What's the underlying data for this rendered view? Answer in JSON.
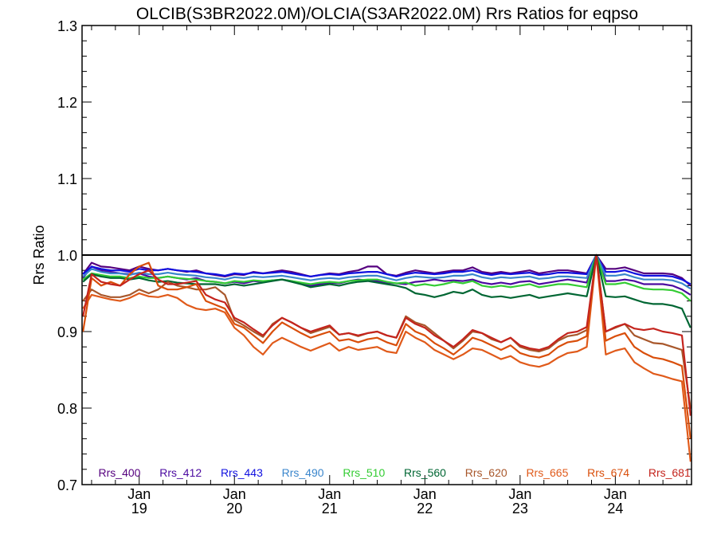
{
  "chart_data": {
    "type": "line",
    "title": "OLCIB(S3BR2022.0M)/OLCIA(S3AR2022.0M)  Rrs Ratios for eqpso",
    "xlabel": "",
    "ylabel": "Rrs Ratio",
    "ylim": [
      0.7,
      1.3
    ],
    "xlim": [
      18.4,
      24.8
    ],
    "yticks": [
      0.7,
      0.8,
      0.9,
      1.0,
      1.1,
      1.2,
      1.3
    ],
    "ytick_labels": [
      "0.7",
      "0.8",
      "0.9",
      "1.0",
      "1.1",
      "1.2",
      "1.3"
    ],
    "xticks": [
      {
        "x": 19,
        "month": "Jan",
        "day": "19"
      },
      {
        "x": 20,
        "month": "Jan",
        "day": "20"
      },
      {
        "x": 21,
        "month": "Jan",
        "day": "21"
      },
      {
        "x": 22,
        "month": "Jan",
        "day": "22"
      },
      {
        "x": 23,
        "month": "Jan",
        "day": "23"
      },
      {
        "x": 24,
        "month": "Jan",
        "day": "24"
      }
    ],
    "reference_line": 1.0,
    "legend_placement": "bottom",
    "x": [
      18.41,
      18.5,
      18.6,
      18.7,
      18.8,
      18.9,
      19.0,
      19.1,
      19.2,
      19.3,
      19.4,
      19.5,
      19.6,
      19.7,
      19.8,
      19.9,
      20.0,
      20.1,
      20.2,
      20.3,
      20.4,
      20.5,
      20.6,
      20.7,
      20.8,
      20.9,
      21.0,
      21.1,
      21.2,
      21.3,
      21.4,
      21.5,
      21.6,
      21.7,
      21.8,
      21.9,
      22.0,
      22.1,
      22.2,
      22.3,
      22.4,
      22.5,
      22.6,
      22.7,
      22.8,
      22.9,
      23.0,
      23.1,
      23.2,
      23.3,
      23.4,
      23.5,
      23.6,
      23.7,
      23.8,
      23.9,
      24.0,
      24.1,
      24.2,
      24.3,
      24.4,
      24.5,
      24.6,
      24.7,
      24.79
    ],
    "series": [
      {
        "name": "Rrs_400",
        "color": "#55007f",
        "values": [
          0.975,
          0.99,
          0.985,
          0.984,
          0.982,
          0.98,
          0.985,
          0.982,
          0.98,
          0.982,
          0.98,
          0.978,
          0.98,
          0.976,
          0.974,
          0.972,
          0.975,
          0.974,
          0.978,
          0.976,
          0.978,
          0.98,
          0.978,
          0.975,
          0.972,
          0.974,
          0.976,
          0.975,
          0.978,
          0.98,
          0.985,
          0.985,
          0.975,
          0.973,
          0.977,
          0.98,
          0.978,
          0.976,
          0.978,
          0.98,
          0.98,
          0.984,
          0.978,
          0.976,
          0.978,
          0.976,
          0.978,
          0.98,
          0.976,
          0.978,
          0.98,
          0.98,
          0.978,
          0.976,
          1.0,
          0.982,
          0.982,
          0.984,
          0.98,
          0.976,
          0.976,
          0.976,
          0.975,
          0.97,
          0.96
        ]
      },
      {
        "name": "Rrs_412",
        "color": "#4b0aa0",
        "values": [
          0.97,
          0.985,
          0.98,
          0.978,
          0.976,
          0.975,
          0.976,
          0.972,
          0.97,
          0.972,
          0.97,
          0.968,
          0.97,
          0.966,
          0.965,
          0.963,
          0.965,
          0.963,
          0.966,
          0.965,
          0.967,
          0.968,
          0.966,
          0.963,
          0.96,
          0.962,
          0.964,
          0.963,
          0.966,
          0.968,
          0.967,
          0.966,
          0.964,
          0.963,
          0.962,
          0.965,
          0.966,
          0.968,
          0.966,
          0.967,
          0.966,
          0.968,
          0.964,
          0.962,
          0.964,
          0.962,
          0.965,
          0.966,
          0.962,
          0.964,
          0.966,
          0.968,
          0.966,
          0.964,
          1.0,
          0.966,
          0.966,
          0.968,
          0.966,
          0.962,
          0.962,
          0.962,
          0.96,
          0.955,
          0.948
        ]
      },
      {
        "name": "Rrs_443",
        "color": "#1010e0",
        "values": [
          0.975,
          0.985,
          0.982,
          0.98,
          0.98,
          0.978,
          0.982,
          0.98,
          0.98,
          0.982,
          0.98,
          0.979,
          0.978,
          0.976,
          0.975,
          0.973,
          0.976,
          0.975,
          0.977,
          0.976,
          0.977,
          0.978,
          0.976,
          0.974,
          0.972,
          0.974,
          0.975,
          0.974,
          0.976,
          0.977,
          0.978,
          0.978,
          0.975,
          0.972,
          0.975,
          0.977,
          0.976,
          0.975,
          0.976,
          0.978,
          0.978,
          0.98,
          0.976,
          0.974,
          0.976,
          0.975,
          0.976,
          0.977,
          0.974,
          0.975,
          0.977,
          0.977,
          0.976,
          0.975,
          1.0,
          0.978,
          0.978,
          0.98,
          0.976,
          0.973,
          0.973,
          0.973,
          0.972,
          0.968,
          0.962
        ]
      },
      {
        "name": "Rrs_490",
        "color": "#3a86cc",
        "values": [
          0.972,
          0.982,
          0.978,
          0.976,
          0.976,
          0.974,
          0.977,
          0.975,
          0.975,
          0.977,
          0.975,
          0.974,
          0.973,
          0.971,
          0.97,
          0.968,
          0.971,
          0.97,
          0.972,
          0.971,
          0.972,
          0.973,
          0.971,
          0.969,
          0.967,
          0.969,
          0.97,
          0.969,
          0.971,
          0.972,
          0.973,
          0.973,
          0.97,
          0.967,
          0.97,
          0.972,
          0.971,
          0.97,
          0.971,
          0.973,
          0.973,
          0.975,
          0.971,
          0.969,
          0.971,
          0.97,
          0.971,
          0.972,
          0.969,
          0.97,
          0.972,
          0.972,
          0.971,
          0.97,
          1.0,
          0.973,
          0.973,
          0.975,
          0.971,
          0.968,
          0.968,
          0.968,
          0.967,
          0.963,
          0.956
        ]
      },
      {
        "name": "Rrs_510",
        "color": "#33cc33",
        "values": [
          0.968,
          0.976,
          0.974,
          0.972,
          0.972,
          0.97,
          0.972,
          0.97,
          0.97,
          0.972,
          0.97,
          0.969,
          0.968,
          0.966,
          0.965,
          0.963,
          0.966,
          0.965,
          0.967,
          0.966,
          0.967,
          0.968,
          0.966,
          0.964,
          0.962,
          0.964,
          0.965,
          0.964,
          0.966,
          0.967,
          0.968,
          0.968,
          0.965,
          0.963,
          0.964,
          0.96,
          0.962,
          0.96,
          0.962,
          0.965,
          0.963,
          0.966,
          0.96,
          0.958,
          0.96,
          0.958,
          0.96,
          0.962,
          0.958,
          0.96,
          0.962,
          0.962,
          0.96,
          0.958,
          1.0,
          0.962,
          0.962,
          0.964,
          0.96,
          0.956,
          0.955,
          0.955,
          0.954,
          0.95,
          0.94
        ]
      },
      {
        "name": "Rrs_560",
        "color": "#006633",
        "values": [
          0.965,
          0.975,
          0.972,
          0.97,
          0.97,
          0.968,
          0.97,
          0.967,
          0.965,
          0.966,
          0.964,
          0.963,
          0.962,
          0.962,
          0.962,
          0.96,
          0.962,
          0.96,
          0.962,
          0.964,
          0.966,
          0.968,
          0.965,
          0.962,
          0.958,
          0.96,
          0.962,
          0.96,
          0.963,
          0.965,
          0.966,
          0.964,
          0.962,
          0.96,
          0.957,
          0.95,
          0.948,
          0.945,
          0.948,
          0.952,
          0.95,
          0.955,
          0.948,
          0.945,
          0.946,
          0.944,
          0.946,
          0.948,
          0.944,
          0.946,
          0.948,
          0.95,
          0.948,
          0.946,
          1.0,
          0.946,
          0.945,
          0.946,
          0.942,
          0.938,
          0.936,
          0.936,
          0.934,
          0.93,
          0.905
        ]
      },
      {
        "name": "Rrs_620",
        "color": "#a8572b",
        "values": [
          0.94,
          0.955,
          0.948,
          0.945,
          0.945,
          0.948,
          0.955,
          0.95,
          0.955,
          0.965,
          0.96,
          0.958,
          0.955,
          0.955,
          0.958,
          0.948,
          0.915,
          0.908,
          0.9,
          0.893,
          0.91,
          0.918,
          0.912,
          0.905,
          0.898,
          0.902,
          0.906,
          0.896,
          0.898,
          0.894,
          0.898,
          0.9,
          0.895,
          0.892,
          0.92,
          0.912,
          0.908,
          0.898,
          0.888,
          0.878,
          0.888,
          0.9,
          0.898,
          0.89,
          0.886,
          0.892,
          0.88,
          0.876,
          0.874,
          0.878,
          0.888,
          0.894,
          0.896,
          0.902,
          1.0,
          0.9,
          0.905,
          0.91,
          0.895,
          0.89,
          0.885,
          0.884,
          0.88,
          0.876,
          0.8
        ]
      },
      {
        "name": "Rrs_665",
        "color": "#e05a1a",
        "values": [
          0.93,
          0.948,
          0.945,
          0.942,
          0.94,
          0.944,
          0.95,
          0.946,
          0.945,
          0.948,
          0.944,
          0.935,
          0.93,
          0.928,
          0.93,
          0.925,
          0.905,
          0.895,
          0.88,
          0.87,
          0.885,
          0.892,
          0.886,
          0.88,
          0.875,
          0.88,
          0.885,
          0.875,
          0.88,
          0.876,
          0.878,
          0.88,
          0.874,
          0.872,
          0.9,
          0.892,
          0.886,
          0.876,
          0.87,
          0.864,
          0.87,
          0.878,
          0.876,
          0.87,
          0.864,
          0.868,
          0.86,
          0.856,
          0.854,
          0.858,
          0.866,
          0.872,
          0.874,
          0.88,
          1.0,
          0.87,
          0.875,
          0.878,
          0.86,
          0.852,
          0.845,
          0.842,
          0.838,
          0.835,
          0.73
        ]
      },
      {
        "name": "Rrs_674",
        "color": "#d94e0a",
        "values": [
          0.9,
          0.97,
          0.96,
          0.965,
          0.96,
          0.975,
          0.985,
          0.99,
          0.96,
          0.955,
          0.955,
          0.958,
          0.962,
          0.94,
          0.935,
          0.93,
          0.91,
          0.905,
          0.895,
          0.885,
          0.9,
          0.912,
          0.905,
          0.898,
          0.892,
          0.896,
          0.9,
          0.888,
          0.89,
          0.886,
          0.89,
          0.892,
          0.886,
          0.882,
          0.91,
          0.9,
          0.895,
          0.885,
          0.878,
          0.87,
          0.88,
          0.892,
          0.888,
          0.882,
          0.876,
          0.882,
          0.872,
          0.868,
          0.866,
          0.87,
          0.88,
          0.886,
          0.888,
          0.894,
          1.0,
          0.888,
          0.894,
          0.898,
          0.88,
          0.872,
          0.866,
          0.864,
          0.86,
          0.855,
          0.76
        ]
      },
      {
        "name": "Rrs_681",
        "color": "#c4241d",
        "values": [
          0.92,
          0.975,
          0.965,
          0.962,
          0.96,
          0.968,
          0.975,
          0.98,
          0.968,
          0.962,
          0.962,
          0.964,
          0.966,
          0.948,
          0.942,
          0.938,
          0.918,
          0.912,
          0.903,
          0.895,
          0.908,
          0.918,
          0.912,
          0.905,
          0.9,
          0.904,
          0.908,
          0.896,
          0.898,
          0.895,
          0.898,
          0.9,
          0.895,
          0.892,
          0.918,
          0.91,
          0.905,
          0.895,
          0.888,
          0.88,
          0.89,
          0.902,
          0.898,
          0.892,
          0.886,
          0.892,
          0.882,
          0.878,
          0.876,
          0.88,
          0.89,
          0.898,
          0.9,
          0.906,
          1.0,
          0.9,
          0.906,
          0.91,
          0.904,
          0.902,
          0.904,
          0.9,
          0.898,
          0.895,
          0.79
        ]
      }
    ]
  }
}
